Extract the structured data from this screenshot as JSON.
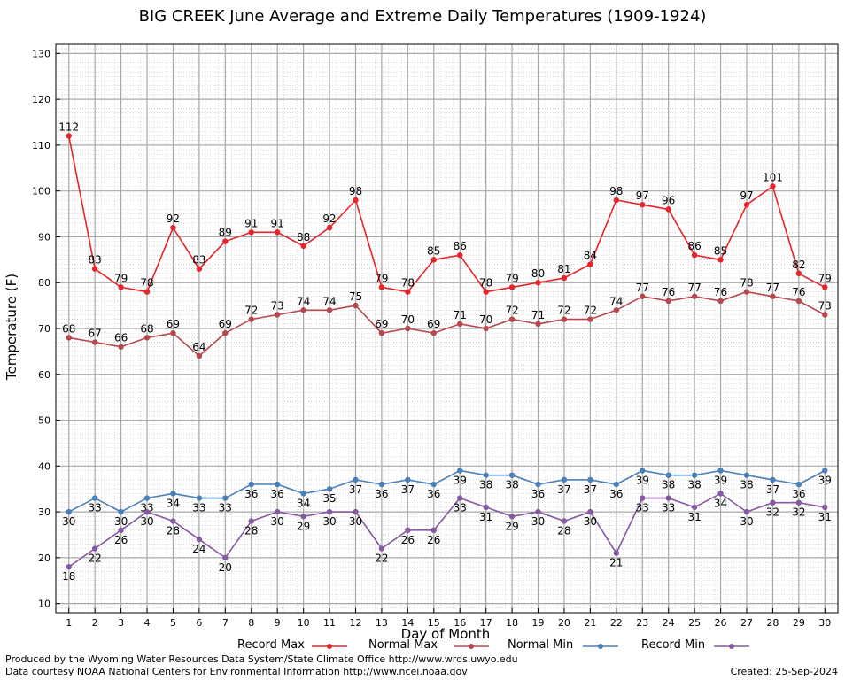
{
  "chart_data": {
    "type": "line",
    "title": "BIG CREEK June Average and Extreme Daily Temperatures (1909-1924)",
    "xlabel": "Day of Month",
    "ylabel": "Temperature (F)",
    "xlim": [
      0.5,
      30.5
    ],
    "ylim": [
      8,
      132
    ],
    "x": [
      1,
      2,
      3,
      4,
      5,
      6,
      7,
      8,
      9,
      10,
      11,
      12,
      13,
      14,
      15,
      16,
      17,
      18,
      19,
      20,
      21,
      22,
      23,
      24,
      25,
      26,
      27,
      28,
      29,
      30
    ],
    "yticks": [
      10,
      20,
      30,
      40,
      50,
      60,
      70,
      80,
      90,
      100,
      110,
      120,
      130
    ],
    "grid": true,
    "legend_position": "bottom",
    "series": [
      {
        "name": "Record Max",
        "color": "#e8232a",
        "values": [
          112,
          83,
          79,
          78,
          92,
          83,
          89,
          91,
          91,
          88,
          92,
          98,
          79,
          78,
          85,
          86,
          78,
          79,
          80,
          81,
          84,
          98,
          97,
          96,
          86,
          85,
          97,
          101,
          82,
          79
        ]
      },
      {
        "name": "Normal Max",
        "color": "#b5474e",
        "values": [
          68,
          67,
          66,
          68,
          69,
          64,
          69,
          72,
          73,
          74,
          74,
          75,
          69,
          70,
          69,
          71,
          70,
          72,
          71,
          72,
          72,
          74,
          77,
          76,
          77,
          76,
          78,
          77,
          76,
          73
        ]
      },
      {
        "name": "Normal Min",
        "color": "#4a7fb8",
        "values": [
          30,
          33,
          30,
          33,
          34,
          33,
          33,
          36,
          36,
          34,
          35,
          37,
          36,
          37,
          36,
          39,
          38,
          38,
          36,
          37,
          37,
          36,
          39,
          38,
          38,
          39,
          38,
          37,
          36,
          39
        ]
      },
      {
        "name": "Record Min",
        "color": "#8659a0",
        "values": [
          18,
          22,
          26,
          30,
          28,
          24,
          20,
          28,
          30,
          29,
          30,
          30,
          22,
          26,
          26,
          33,
          31,
          29,
          30,
          28,
          30,
          21,
          33,
          33,
          31,
          34,
          30,
          32,
          32,
          31
        ]
      }
    ]
  },
  "footer": {
    "produced_by": "Produced by the Wyoming Water Resources Data System/State Climate Office http://www.wrds.uwyo.edu",
    "courtesy": "Data courtesy NOAA National Centers for Environmental Information http://www.ncei.noaa.gov",
    "created": "Created:  25-Sep-2024"
  }
}
